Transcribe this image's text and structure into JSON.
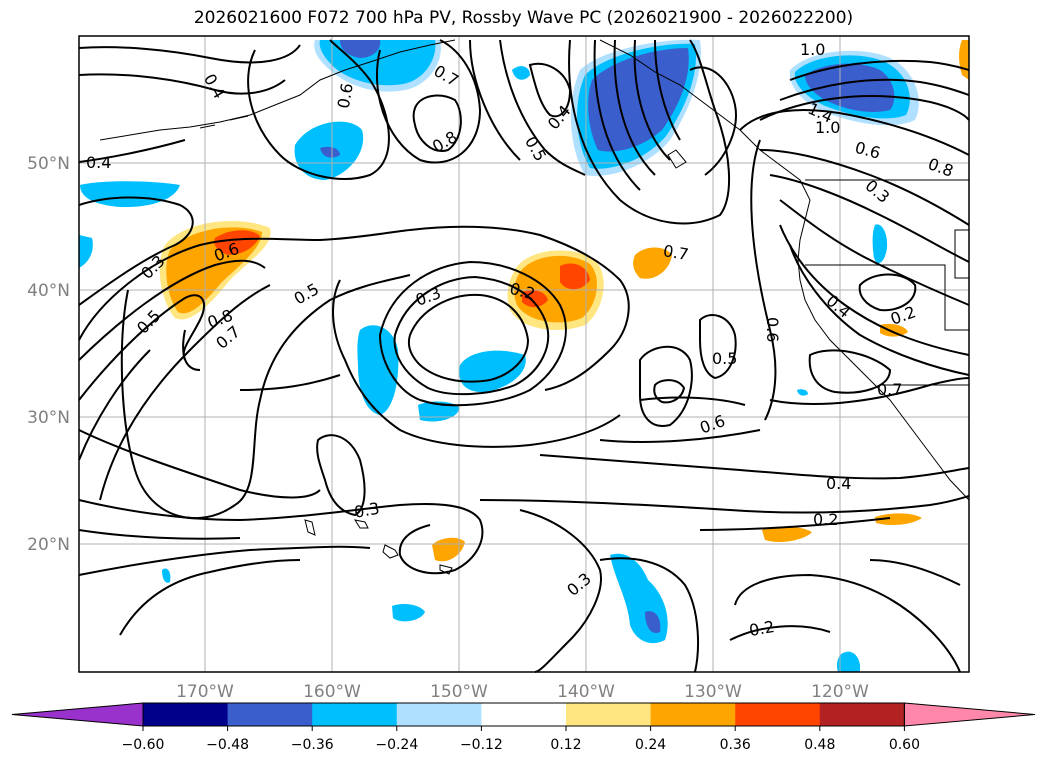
{
  "title": "2026021600 F072 700 hPa PV, Rossby Wave PC (2026021900 - 2026022200)",
  "latitude_labels": [
    "50°N",
    "40°N",
    "30°N",
    "20°N"
  ],
  "longitude_labels": [
    "170°W",
    "160°W",
    "150°W",
    "140°W",
    "130°W",
    "120°W"
  ],
  "contour_labels": [
    "0.4",
    "0.6",
    "0.7",
    "0.8",
    "0.4",
    "0.5",
    "1.0",
    "1.4",
    "1.0",
    "0.6",
    "0.8",
    "0.3",
    "0.4",
    "0.3",
    "0.6",
    "0.5",
    "0.8",
    "0.7",
    "0.5",
    "0.3",
    "0.2",
    "0.7",
    "0.6",
    "0.4",
    "0.2",
    "0.5",
    "0.7",
    "0.6",
    "0.4",
    "0.2",
    "0.3",
    "0.3",
    "0.2"
  ],
  "colorbar": {
    "ticks": [
      "−0.60",
      "−0.48",
      "−0.36",
      "−0.24",
      "−0.12",
      "0.12",
      "0.24",
      "0.36",
      "0.48",
      "0.60"
    ],
    "colors": [
      "#9932cc",
      "#00008b",
      "#3a5fcd",
      "#00bfff",
      "#b0e0ff",
      "#ffffff",
      "#ffe680",
      "#ffa500",
      "#ff4500",
      "#b22222",
      "#ff88aa"
    ]
  }
}
